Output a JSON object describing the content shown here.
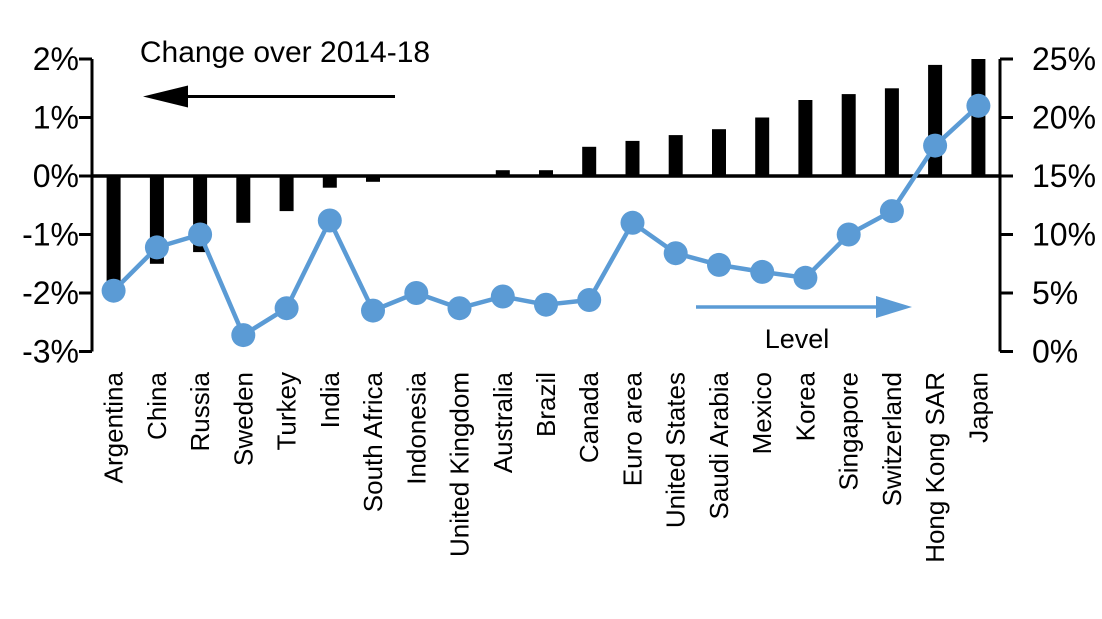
{
  "chart_data": {
    "type": "bar",
    "subtype": "bar-line-combo-dual-axis",
    "title": "",
    "categories": [
      "Argentina",
      "China",
      "Russia",
      "Sweden",
      "Turkey",
      "India",
      "South Africa",
      "Indonesia",
      "United Kingdom",
      "Australia",
      "Brazil",
      "Canada",
      "Euro area",
      "United States",
      "Saudi Arabia",
      "Mexico",
      "Korea",
      "Singapore",
      "Switzerland",
      "Hong Kong SAR",
      "Japan"
    ],
    "series": [
      {
        "name": "Change over 2014-18",
        "type": "bar",
        "axis": "left",
        "color": "#000000",
        "values": [
          -1.8,
          -1.5,
          -1.3,
          -0.8,
          -0.6,
          -0.2,
          -0.1,
          0.0,
          0.0,
          0.1,
          0.1,
          0.5,
          0.6,
          0.7,
          0.8,
          1.0,
          1.3,
          1.4,
          1.5,
          1.9,
          2.0
        ]
      },
      {
        "name": "Level",
        "type": "line",
        "axis": "right",
        "color": "#5B9BD5",
        "marker": "circle",
        "values": [
          5.2,
          8.9,
          10.0,
          1.4,
          3.7,
          11.2,
          3.5,
          5.0,
          3.7,
          4.7,
          4.0,
          4.4,
          11.0,
          8.4,
          7.4,
          6.8,
          6.3,
          10.0,
          12.0,
          17.6,
          21.0
        ]
      }
    ],
    "left_axis": {
      "range": [
        -3,
        2
      ],
      "tick_values": [
        2,
        1,
        0,
        -1,
        -2,
        -3
      ],
      "tick_labels": [
        "2%",
        "1%",
        "0%",
        "-1%",
        "-2%",
        "-3%"
      ]
    },
    "right_axis": {
      "range": [
        0,
        25
      ],
      "tick_values": [
        25,
        20,
        15,
        10,
        5,
        0
      ],
      "tick_labels": [
        "25%",
        "20%",
        "15%",
        "10%",
        "5%",
        "0%"
      ]
    },
    "annotations": {
      "bars_label": {
        "text": "Change over 2014-18",
        "arrow_direction": "left",
        "arrow_color": "#000000"
      },
      "line_label": {
        "text": "Level",
        "arrow_direction": "right",
        "arrow_color": "#5B9BD5"
      }
    },
    "layout_hints": {
      "grid": "off",
      "zero_line": "on",
      "category_labels": "rotated-90-reading-bottom-up",
      "background": "#FFFFFF"
    }
  }
}
